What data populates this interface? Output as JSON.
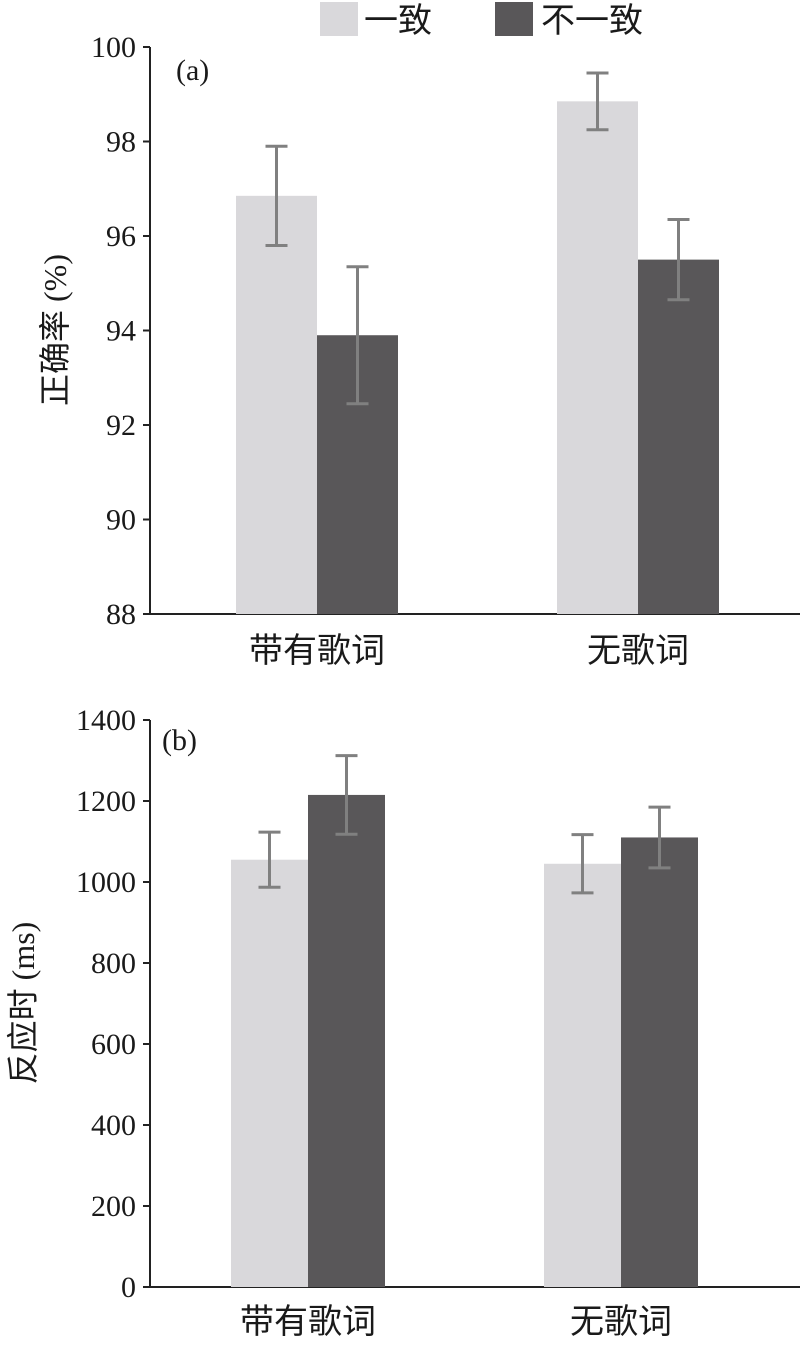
{
  "legend": {
    "position": "top-center",
    "items": [
      {
        "label": "一致",
        "color": "#d9d8db"
      },
      {
        "label": "不一致",
        "color": "#595759"
      }
    ]
  },
  "chart_data": [
    {
      "type": "bar",
      "panel_label": "(a)",
      "categories": [
        "带有歌词",
        "无歌词"
      ],
      "ylabel": "正确率 (%)",
      "ylim": [
        88,
        100
      ],
      "yticks": [
        88,
        90,
        92,
        94,
        96,
        98,
        100
      ],
      "grid": false,
      "series": [
        {
          "name": "一致",
          "color": "#d9d8db",
          "values": [
            96.85,
            98.85
          ],
          "error": [
            1.05,
            0.6
          ]
        },
        {
          "name": "不一致",
          "color": "#595759",
          "values": [
            93.9,
            95.5
          ],
          "error": [
            1.45,
            0.85
          ]
        }
      ]
    },
    {
      "type": "bar",
      "panel_label": "(b)",
      "categories": [
        "带有歌词",
        "无歌词"
      ],
      "ylabel": "反应时 (ms)",
      "ylim": [
        0,
        1400
      ],
      "yticks": [
        0,
        200,
        400,
        600,
        800,
        1000,
        1200,
        1400
      ],
      "grid": false,
      "series": [
        {
          "name": "一致",
          "color": "#d9d8db",
          "values": [
            1055,
            1045
          ],
          "error": [
            68,
            72
          ]
        },
        {
          "name": "不一致",
          "color": "#595759",
          "values": [
            1215,
            1110
          ],
          "error": [
            97,
            75
          ]
        }
      ]
    }
  ],
  "error_bar_color": "#808080"
}
